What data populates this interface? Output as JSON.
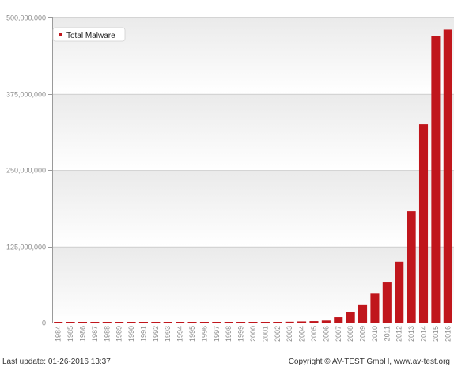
{
  "chart_data": {
    "type": "bar",
    "title": "",
    "xlabel": "",
    "ylabel": "",
    "categories": [
      "1984",
      "1985",
      "1986",
      "1987",
      "1988",
      "1989",
      "1990",
      "1991",
      "1992",
      "1993",
      "1994",
      "1995",
      "1996",
      "1997",
      "1998",
      "1999",
      "2000",
      "2001",
      "2002",
      "2003",
      "2004",
      "2005",
      "2006",
      "2007",
      "2008",
      "2009",
      "2010",
      "2011",
      "2012",
      "2013",
      "2014",
      "2015",
      "2016"
    ],
    "series": [
      {
        "name": "Total Malware",
        "color": "#c0161c",
        "values": [
          0.5,
          0.5,
          0.5,
          0.5,
          0.5,
          0.5,
          0.5,
          0.5,
          0.5,
          0.5,
          0.5,
          0.5,
          0.5,
          0.5,
          0.5,
          0.5,
          0.5,
          0.5,
          1,
          1.5,
          2,
          2.5,
          3.5,
          9,
          17,
          30,
          47.5,
          66,
          100,
          182.5,
          325,
          470,
          480
        ]
      }
    ],
    "value_unit": "millions",
    "ylim": [
      0,
      500000000
    ],
    "yticks": [
      "0",
      "125,000,000",
      "250,000,000",
      "375,000,000",
      "500,000,000"
    ],
    "grid": true,
    "legend_position": "top-left",
    "background_bands": true
  },
  "footer": {
    "last_update": "Last update: 01-26-2016 13:37",
    "copyright": "Copyright © AV-TEST GmbH, www.av-test.org"
  }
}
